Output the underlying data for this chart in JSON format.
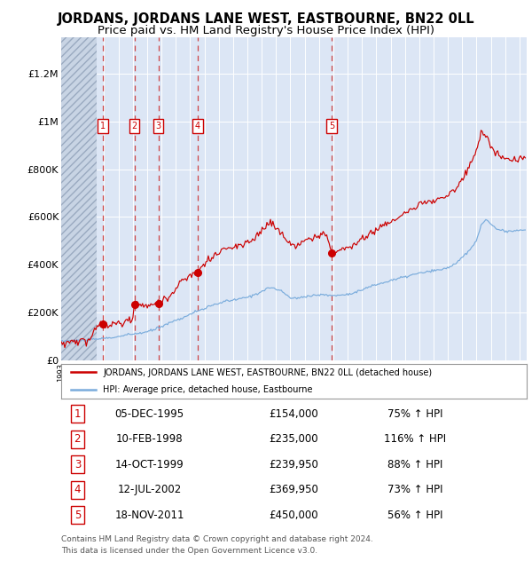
{
  "title": "JORDANS, JORDANS LANE WEST, EASTBOURNE, BN22 0LL",
  "subtitle": "Price paid vs. HM Land Registry's House Price Index (HPI)",
  "hpi_legend": "HPI: Average price, detached house, Eastbourne",
  "property_legend": "JORDANS, JORDANS LANE WEST, EASTBOURNE, BN22 0LL (detached house)",
  "footnote1": "Contains HM Land Registry data © Crown copyright and database right 2024.",
  "footnote2": "This data is licensed under the Open Government Licence v3.0.",
  "sales": [
    {
      "num": 1,
      "date": "1995-12-05",
      "price": 154000,
      "pct": "75%",
      "x_year": 1995.92
    },
    {
      "num": 2,
      "date": "1998-02-10",
      "price": 235000,
      "pct": "116%",
      "x_year": 1998.11
    },
    {
      "num": 3,
      "date": "1999-10-14",
      "price": 239950,
      "pct": "88%",
      "x_year": 1999.78
    },
    {
      "num": 4,
      "date": "2002-07-12",
      "price": 369950,
      "pct": "73%",
      "x_year": 2002.53
    },
    {
      "num": 5,
      "date": "2011-11-18",
      "price": 450000,
      "pct": "56%",
      "x_year": 2011.88
    }
  ],
  "sale_labels": [
    "05-DEC-1995",
    "10-FEB-1998",
    "14-OCT-1999",
    "12-JUL-2002",
    "18-NOV-2011"
  ],
  "sale_prices_fmt": [
    "£154,000",
    "£235,000",
    "£239,950",
    "£369,950",
    "£450,000"
  ],
  "sale_pct_fmt": [
    "75% ↑ HPI",
    "116% ↑ HPI",
    "88% ↑ HPI",
    "73% ↑ HPI",
    "56% ↑ HPI"
  ],
  "xlim_left": 1993.0,
  "xlim_right": 2025.5,
  "ylim_bottom": 0,
  "ylim_top": 1350000,
  "yticks": [
    0,
    200000,
    400000,
    600000,
    800000,
    1000000,
    1200000
  ],
  "ytick_labels": [
    "£0",
    "£200K",
    "£400K",
    "£600K",
    "£800K",
    "£1M",
    "£1.2M"
  ],
  "bg_color": "#dce6f5",
  "hatch_bg_color": "#c8d4e4",
  "grid_color": "#ffffff",
  "red_line_color": "#cc0000",
  "blue_line_color": "#7aacdc",
  "dashed_vline_color": "#cc3333",
  "sale_dot_color": "#cc0000",
  "box_edge_color": "#cc0000",
  "fig_bg": "#ffffff",
  "title_fontsize": 10.5,
  "subtitle_fontsize": 9.5,
  "hatch_end_year": 1995.5
}
